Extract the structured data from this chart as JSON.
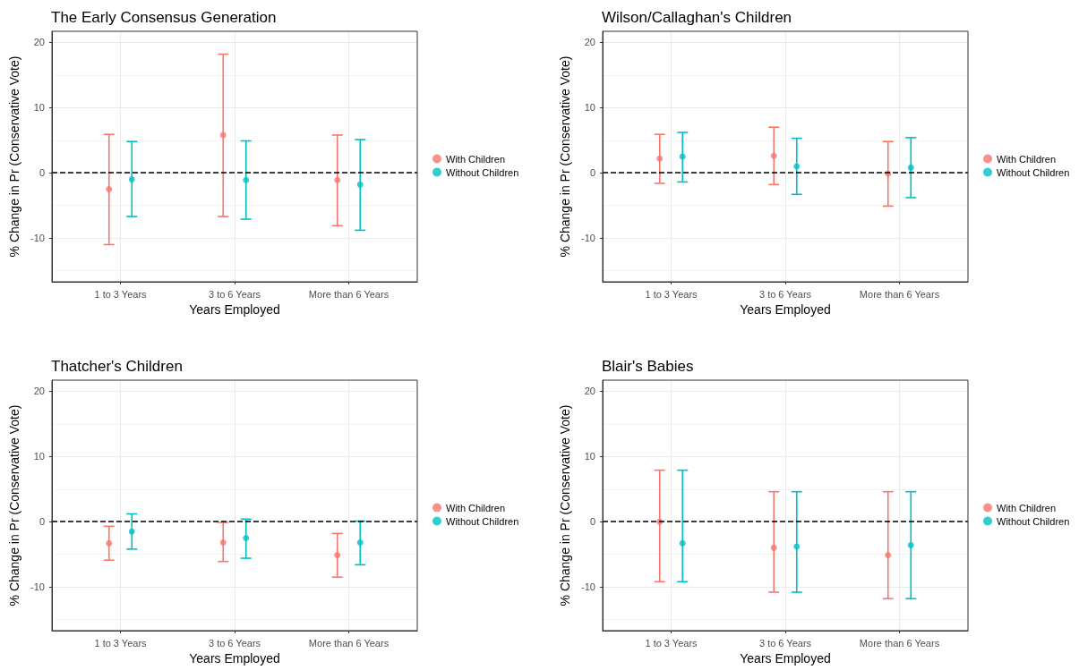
{
  "chart_data": [
    {
      "type": "scatter",
      "title": "The Early Consensus Generation",
      "xlabel": "Years Employed",
      "ylabel": "% Change in Pr (Conservative Vote)",
      "categories": [
        "1 to 3 Years",
        "3 to 6 Years",
        "More than 6 Years"
      ],
      "ylim": [
        -16.7,
        21.7
      ],
      "yticks": [
        -10,
        0,
        10,
        20
      ],
      "grid": true,
      "legend": "right",
      "marker": "circle",
      "ref_lines": [
        {
          "axis": "y",
          "value": 0,
          "line_style": "dashed",
          "color": "#000000"
        }
      ],
      "series": [
        {
          "name": "With Children",
          "color": "#f8766d",
          "values": [
            -2.5,
            5.8,
            -1.1
          ],
          "errors": [
            [
              -11.0,
              5.9
            ],
            [
              -6.7,
              18.2
            ],
            [
              -8.1,
              5.8
            ]
          ]
        },
        {
          "name": "Without Children",
          "color": "#00bfc4",
          "values": [
            -1.0,
            -1.1,
            -1.8
          ],
          "errors": [
            [
              -6.7,
              4.8
            ],
            [
              -7.1,
              4.9
            ],
            [
              -8.8,
              5.1
            ]
          ]
        }
      ]
    },
    {
      "type": "scatter",
      "title": "Wilson/Callaghan's Children",
      "xlabel": "Years Employed",
      "ylabel": "% Change in Pr (Conservative Vote)",
      "categories": [
        "1 to 3 Years",
        "3 to 6 Years",
        "More than 6 Years"
      ],
      "ylim": [
        -16.7,
        21.7
      ],
      "yticks": [
        -10,
        0,
        10,
        20
      ],
      "grid": true,
      "legend": "right",
      "marker": "circle",
      "ref_lines": [
        {
          "axis": "y",
          "value": 0,
          "line_style": "dashed",
          "color": "#000000"
        }
      ],
      "series": [
        {
          "name": "With Children",
          "color": "#f8766d",
          "values": [
            2.2,
            2.6,
            -0.1
          ],
          "errors": [
            [
              -1.6,
              5.9
            ],
            [
              -1.8,
              7.0
            ],
            [
              -5.1,
              4.8
            ]
          ]
        },
        {
          "name": "Without Children",
          "color": "#00bfc4",
          "values": [
            2.5,
            1.0,
            0.8
          ],
          "errors": [
            [
              -1.4,
              6.2
            ],
            [
              -3.3,
              5.3
            ],
            [
              -3.8,
              5.4
            ]
          ]
        }
      ]
    },
    {
      "type": "scatter",
      "title": "Thatcher's Children",
      "xlabel": "Years Employed",
      "ylabel": "% Change in Pr (Conservative Vote)",
      "categories": [
        "1 to 3 Years",
        "3 to 6 Years",
        "More than 6 Years"
      ],
      "ylim": [
        -16.7,
        21.7
      ],
      "yticks": [
        -10,
        0,
        10,
        20
      ],
      "grid": true,
      "legend": "right",
      "marker": "circle",
      "ref_lines": [
        {
          "axis": "y",
          "value": 0,
          "line_style": "dashed",
          "color": "#000000"
        }
      ],
      "series": [
        {
          "name": "With Children",
          "color": "#f8766d",
          "values": [
            -3.3,
            -3.2,
            -5.1
          ],
          "errors": [
            [
              -5.9,
              -0.7
            ],
            [
              -6.1,
              -0.1
            ],
            [
              -8.5,
              -1.8
            ]
          ]
        },
        {
          "name": "Without Children",
          "color": "#00bfc4",
          "values": [
            -1.5,
            -2.5,
            -3.2
          ],
          "errors": [
            [
              -4.2,
              1.2
            ],
            [
              -5.6,
              0.4
            ],
            [
              -6.6,
              0.1
            ]
          ]
        }
      ]
    },
    {
      "type": "scatter",
      "title": "Blair's Babies",
      "xlabel": "Years Employed",
      "ylabel": "% Change in Pr (Conservative Vote)",
      "categories": [
        "1 to 3 Years",
        "3 to 6 Years",
        "More than 6 Years"
      ],
      "ylim": [
        -16.7,
        21.7
      ],
      "yticks": [
        -10,
        0,
        10,
        20
      ],
      "grid": true,
      "legend": "right",
      "marker": "circle",
      "ref_lines": [
        {
          "axis": "y",
          "value": 0,
          "line_style": "dashed",
          "color": "#000000"
        }
      ],
      "series": [
        {
          "name": "With Children",
          "color": "#f8766d",
          "values": [
            0.0,
            -4.0,
            -5.1
          ],
          "errors": [
            [
              -9.2,
              7.9
            ],
            [
              -10.8,
              4.6
            ],
            [
              -11.8,
              4.6
            ]
          ]
        },
        {
          "name": "Without Children",
          "color": "#00bfc4",
          "values": [
            -3.3,
            -3.8,
            -3.6
          ],
          "errors": [
            [
              -9.2,
              7.9
            ],
            [
              -10.8,
              4.6
            ],
            [
              -11.8,
              4.6
            ]
          ]
        }
      ]
    }
  ]
}
